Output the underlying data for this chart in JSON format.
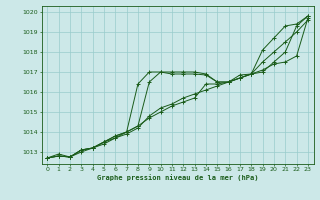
{
  "title": "Graphe pression niveau de la mer (hPa)",
  "bg_color": "#cce8e8",
  "line_color": "#1a5c1a",
  "grid_color": "#99cccc",
  "xlim": [
    -0.5,
    23.5
  ],
  "ylim": [
    1012.4,
    1020.3
  ],
  "yticks": [
    1013,
    1014,
    1015,
    1016,
    1017,
    1018,
    1019,
    1020
  ],
  "xticks": [
    0,
    1,
    2,
    3,
    4,
    5,
    6,
    7,
    8,
    9,
    10,
    11,
    12,
    13,
    14,
    15,
    16,
    17,
    18,
    19,
    20,
    21,
    22,
    23
  ],
  "series": [
    [
      1012.7,
      1012.9,
      1012.75,
      1013.1,
      1013.2,
      1013.5,
      1013.8,
      1014.0,
      1014.3,
      1016.5,
      1017.0,
      1016.9,
      1016.9,
      1016.9,
      1016.85,
      1016.5,
      1016.5,
      1016.85,
      1016.9,
      1018.1,
      1018.7,
      1019.3,
      1019.4,
      1019.8
    ],
    [
      1012.7,
      1012.8,
      1012.75,
      1013.0,
      1013.2,
      1013.4,
      1013.7,
      1013.9,
      1014.2,
      1014.8,
      1015.2,
      1015.4,
      1015.7,
      1015.9,
      1016.1,
      1016.3,
      1016.5,
      1016.7,
      1016.9,
      1017.1,
      1017.4,
      1017.5,
      1017.8,
      1019.7
    ],
    [
      1012.7,
      1012.8,
      1012.75,
      1013.1,
      1013.2,
      1013.5,
      1013.8,
      1014.0,
      1014.3,
      1014.7,
      1015.0,
      1015.3,
      1015.5,
      1015.7,
      1016.4,
      1016.4,
      1016.5,
      1016.7,
      1016.9,
      1017.5,
      1018.0,
      1018.5,
      1019.0,
      1019.6
    ],
    [
      1012.7,
      1012.8,
      1012.75,
      1013.1,
      1013.2,
      1013.5,
      1013.7,
      1014.0,
      1016.4,
      1017.0,
      1017.0,
      1017.0,
      1017.0,
      1017.0,
      1016.9,
      1016.5,
      1016.5,
      1016.7,
      1016.9,
      1017.0,
      1017.5,
      1018.0,
      1019.3,
      1019.8
    ]
  ]
}
